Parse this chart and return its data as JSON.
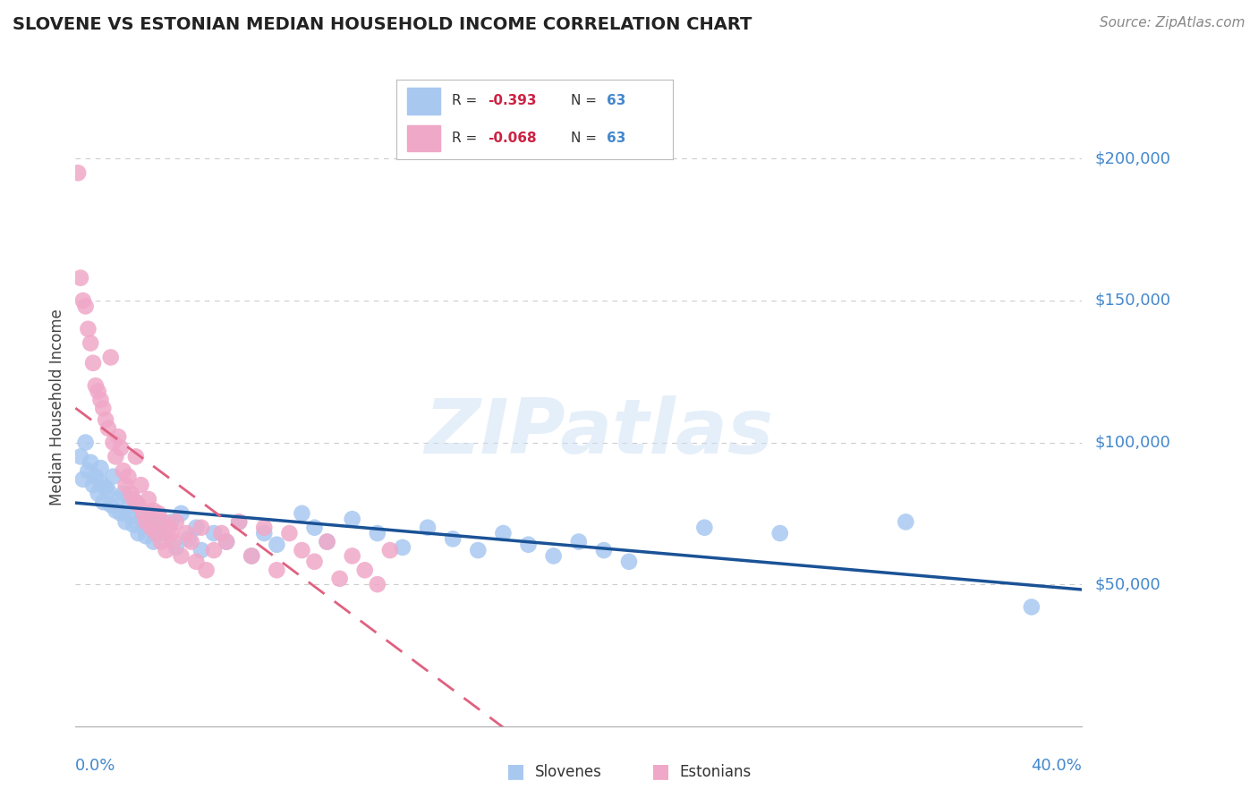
{
  "title": "SLOVENE VS ESTONIAN MEDIAN HOUSEHOLD INCOME CORRELATION CHART",
  "source": "Source: ZipAtlas.com",
  "ylabel": "Median Household Income",
  "ytick_values": [
    50000,
    100000,
    150000,
    200000
  ],
  "ytick_labels": [
    "$50,000",
    "$100,000",
    "$150,000",
    "$200,000"
  ],
  "ylim": [
    0,
    225000
  ],
  "xlim": [
    0.0,
    0.4
  ],
  "watermark": "ZIPatlas",
  "r_slovene": "-0.393",
  "n_slovene": "63",
  "r_estonian": "-0.068",
  "n_estonian": "63",
  "slovene_color": "#a8c8f0",
  "estonian_color": "#f0a8c8",
  "slovene_line_color": "#1a5296",
  "estonian_line_color": "#e06080",
  "grid_color": "#cccccc",
  "bg_color": "#ffffff",
  "title_color": "#222222",
  "ylabel_color": "#444444",
  "axis_value_color": "#4488cc",
  "source_color": "#888888",
  "legend_r_color": "#cc2244",
  "legend_n_color": "#4488cc",
  "legend_text_color": "#333333"
}
